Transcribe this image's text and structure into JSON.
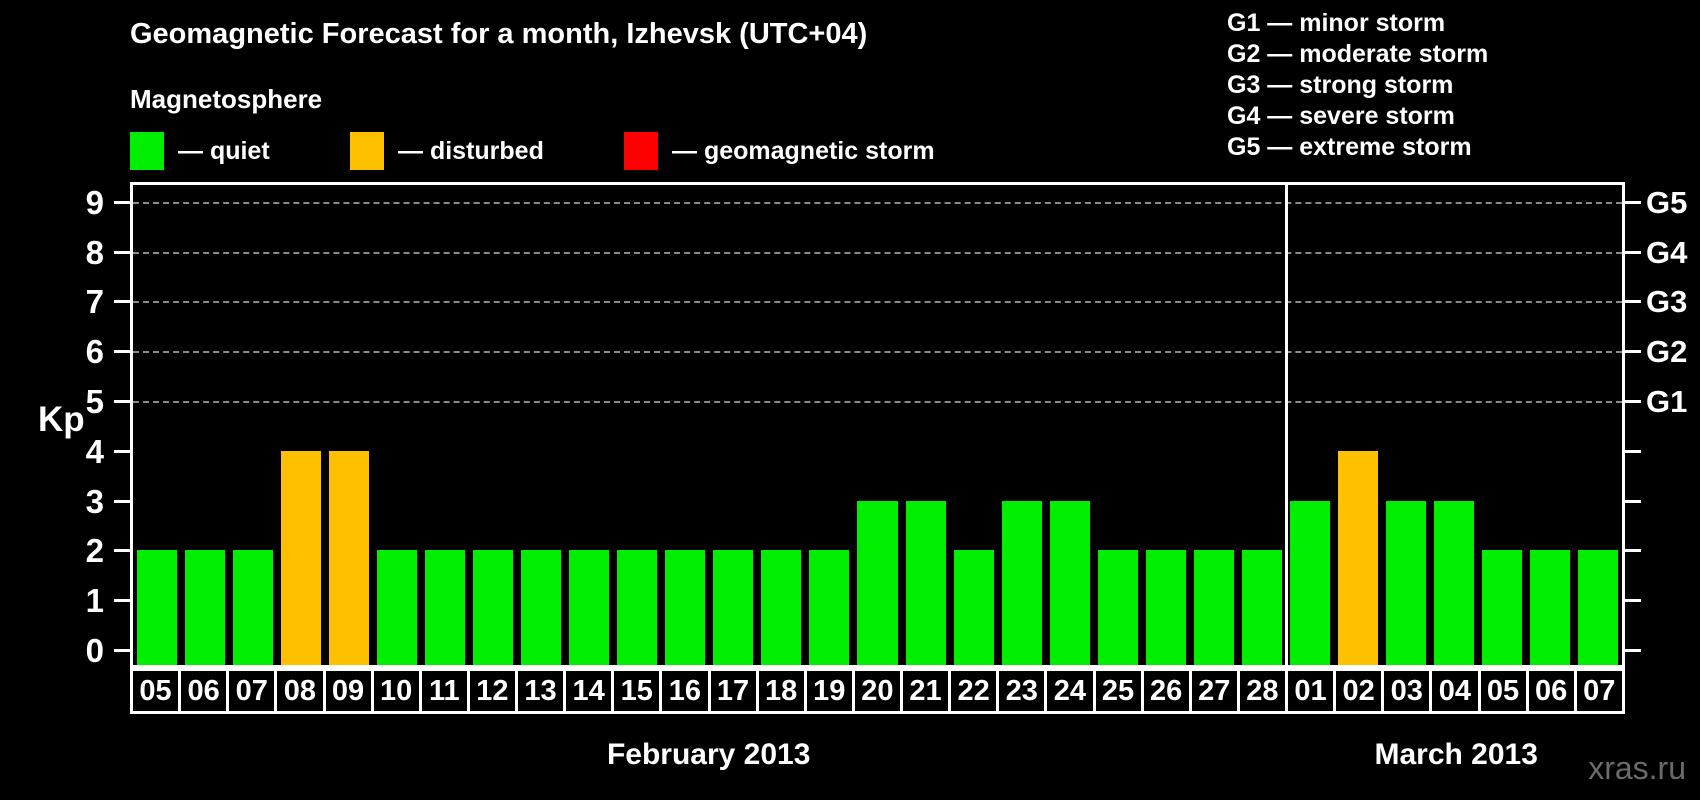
{
  "header": {
    "title": "Geomagnetic Forecast for a month, Izhevsk (UTC+04)",
    "subtitle": "Magnetosphere"
  },
  "legend": {
    "items": [
      {
        "name": "quiet",
        "label": "— quiet",
        "color": "#00ee00"
      },
      {
        "name": "disturbed",
        "label": "— disturbed",
        "color": "#ffc000"
      },
      {
        "name": "storm",
        "label": "— geomagnetic storm",
        "color": "#ff0000"
      }
    ]
  },
  "storm_scale": {
    "lines": [
      "G1 — minor storm",
      "G2 — moderate storm",
      "G3 — strong storm",
      "G4 — severe storm",
      "G5 — extreme storm"
    ]
  },
  "watermark": "xras.ru",
  "colors": {
    "quiet": "#00ee00",
    "disturbed": "#ffc000",
    "storm": "#ff0000",
    "axis": "#ffffff",
    "grid": "#8a8a8a",
    "background": "#000000",
    "watermark": "#6b6b6b"
  },
  "chart_data": {
    "type": "bar",
    "ylabel": "Kp",
    "ylim": [
      0,
      9
    ],
    "yticks": [
      0,
      1,
      2,
      3,
      4,
      5,
      6,
      7,
      8,
      9
    ],
    "gridlines_at": [
      5,
      6,
      7,
      8,
      9
    ],
    "grid_style": "dashed",
    "right_axis_labels": [
      {
        "value": 5,
        "label": "G1"
      },
      {
        "value": 6,
        "label": "G2"
      },
      {
        "value": 7,
        "label": "G3"
      },
      {
        "value": 8,
        "label": "G4"
      },
      {
        "value": 9,
        "label": "G5"
      }
    ],
    "months": [
      {
        "label": "February 2013",
        "days": [
          {
            "day": "05",
            "kp": 2,
            "status": "quiet"
          },
          {
            "day": "06",
            "kp": 2,
            "status": "quiet"
          },
          {
            "day": "07",
            "kp": 2,
            "status": "quiet"
          },
          {
            "day": "08",
            "kp": 4,
            "status": "disturbed"
          },
          {
            "day": "09",
            "kp": 4,
            "status": "disturbed"
          },
          {
            "day": "10",
            "kp": 2,
            "status": "quiet"
          },
          {
            "day": "11",
            "kp": 2,
            "status": "quiet"
          },
          {
            "day": "12",
            "kp": 2,
            "status": "quiet"
          },
          {
            "day": "13",
            "kp": 2,
            "status": "quiet"
          },
          {
            "day": "14",
            "kp": 2,
            "status": "quiet"
          },
          {
            "day": "15",
            "kp": 2,
            "status": "quiet"
          },
          {
            "day": "16",
            "kp": 2,
            "status": "quiet"
          },
          {
            "day": "17",
            "kp": 2,
            "status": "quiet"
          },
          {
            "day": "18",
            "kp": 2,
            "status": "quiet"
          },
          {
            "day": "19",
            "kp": 2,
            "status": "quiet"
          },
          {
            "day": "20",
            "kp": 3,
            "status": "quiet"
          },
          {
            "day": "21",
            "kp": 3,
            "status": "quiet"
          },
          {
            "day": "22",
            "kp": 2,
            "status": "quiet"
          },
          {
            "day": "23",
            "kp": 3,
            "status": "quiet"
          },
          {
            "day": "24",
            "kp": 3,
            "status": "quiet"
          },
          {
            "day": "25",
            "kp": 2,
            "status": "quiet"
          },
          {
            "day": "26",
            "kp": 2,
            "status": "quiet"
          },
          {
            "day": "27",
            "kp": 2,
            "status": "quiet"
          },
          {
            "day": "28",
            "kp": 2,
            "status": "quiet"
          }
        ]
      },
      {
        "label": "March 2013",
        "days": [
          {
            "day": "01",
            "kp": 3,
            "status": "quiet"
          },
          {
            "day": "02",
            "kp": 4,
            "status": "disturbed"
          },
          {
            "day": "03",
            "kp": 3,
            "status": "quiet"
          },
          {
            "day": "04",
            "kp": 3,
            "status": "quiet"
          },
          {
            "day": "05",
            "kp": 2,
            "status": "quiet"
          },
          {
            "day": "06",
            "kp": 2,
            "status": "quiet"
          },
          {
            "day": "07",
            "kp": 2,
            "status": "quiet"
          }
        ]
      }
    ]
  }
}
